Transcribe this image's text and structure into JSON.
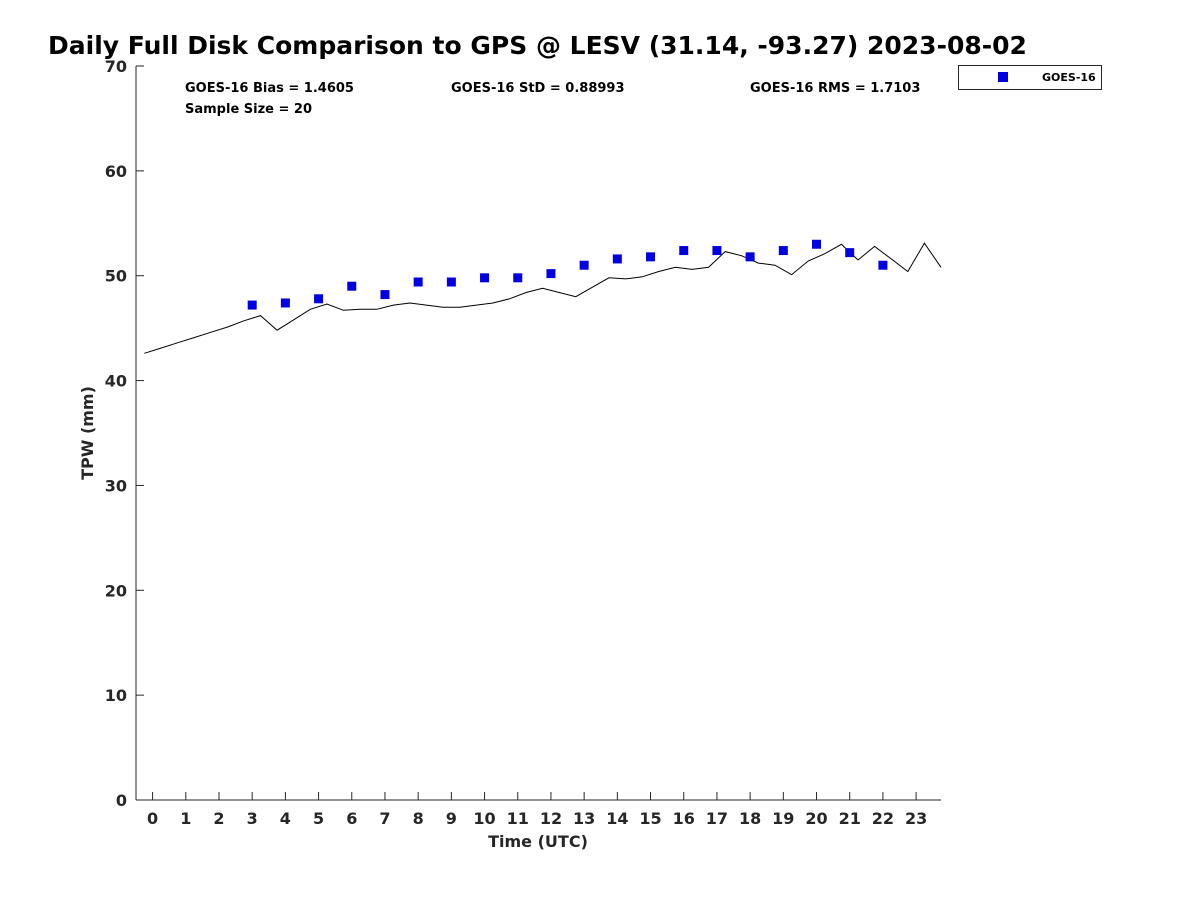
{
  "chart_data": {
    "type": "scatter",
    "title": "Daily Full Disk Comparison to GPS @ LESV (31.14, -93.27) 2023-08-02",
    "xlabel": "Time (UTC)",
    "ylabel": "TPW (mm)",
    "xlim": [
      -0.5,
      23.75
    ],
    "ylim": [
      0,
      70
    ],
    "x_ticks": [
      0,
      1,
      2,
      3,
      4,
      5,
      6,
      7,
      8,
      9,
      10,
      11,
      12,
      13,
      14,
      15,
      16,
      17,
      18,
      19,
      20,
      21,
      22,
      23
    ],
    "y_ticks": [
      0,
      10,
      20,
      30,
      40,
      50,
      60,
      70
    ],
    "grid": false,
    "legend_position": "top-right, outside plot",
    "stats": {
      "bias": "GOES-16 Bias = 1.4605",
      "std": "GOES-16 StD = 0.88993",
      "rms": "GOES-16 RMS = 1.7103",
      "sample_size": "Sample Size = 20"
    },
    "series": [
      {
        "name": "GOES-16",
        "type": "scatter",
        "marker": "square",
        "color": "#0000e0",
        "x": [
          3,
          4,
          5,
          6,
          7,
          8,
          9,
          10,
          11,
          12,
          13,
          14,
          15,
          16,
          17,
          18,
          19,
          20,
          21,
          22
        ],
        "y": [
          47.2,
          47.4,
          47.8,
          49.0,
          48.2,
          49.4,
          49.4,
          49.8,
          49.8,
          50.2,
          51.0,
          51.6,
          51.8,
          52.4,
          52.4,
          51.8,
          52.4,
          53.0,
          52.2,
          51.0
        ]
      },
      {
        "type": "line",
        "color": "#000000",
        "x": [
          -0.25,
          0.25,
          0.75,
          1.25,
          1.75,
          2.25,
          2.75,
          3.25,
          3.75,
          4.25,
          4.75,
          5.25,
          5.75,
          6.25,
          6.75,
          7.25,
          7.75,
          8.25,
          8.75,
          9.25,
          9.75,
          10.25,
          10.75,
          11.25,
          11.75,
          12.25,
          12.75,
          13.25,
          13.75,
          14.25,
          14.75,
          15.25,
          15.75,
          16.25,
          16.75,
          17.25,
          17.75,
          18.25,
          18.75,
          19.25,
          19.75,
          20.25,
          20.75,
          21.25,
          21.75,
          22.25,
          22.75,
          23.25,
          23.75
        ],
        "y": [
          42.6,
          43.1,
          43.6,
          44.1,
          44.6,
          45.1,
          45.7,
          46.2,
          44.8,
          45.8,
          46.8,
          47.3,
          46.7,
          46.8,
          46.8,
          47.2,
          47.4,
          47.2,
          47.0,
          47.0,
          47.2,
          47.4,
          47.8,
          48.4,
          48.8,
          48.4,
          48.0,
          48.9,
          49.8,
          49.7,
          49.9,
          50.4,
          50.8,
          50.6,
          50.8,
          52.3,
          51.9,
          51.2,
          51.0,
          50.1,
          51.4,
          52.1,
          53.0,
          51.5,
          52.8,
          51.6,
          50.4,
          53.1,
          50.8
        ]
      }
    ]
  }
}
